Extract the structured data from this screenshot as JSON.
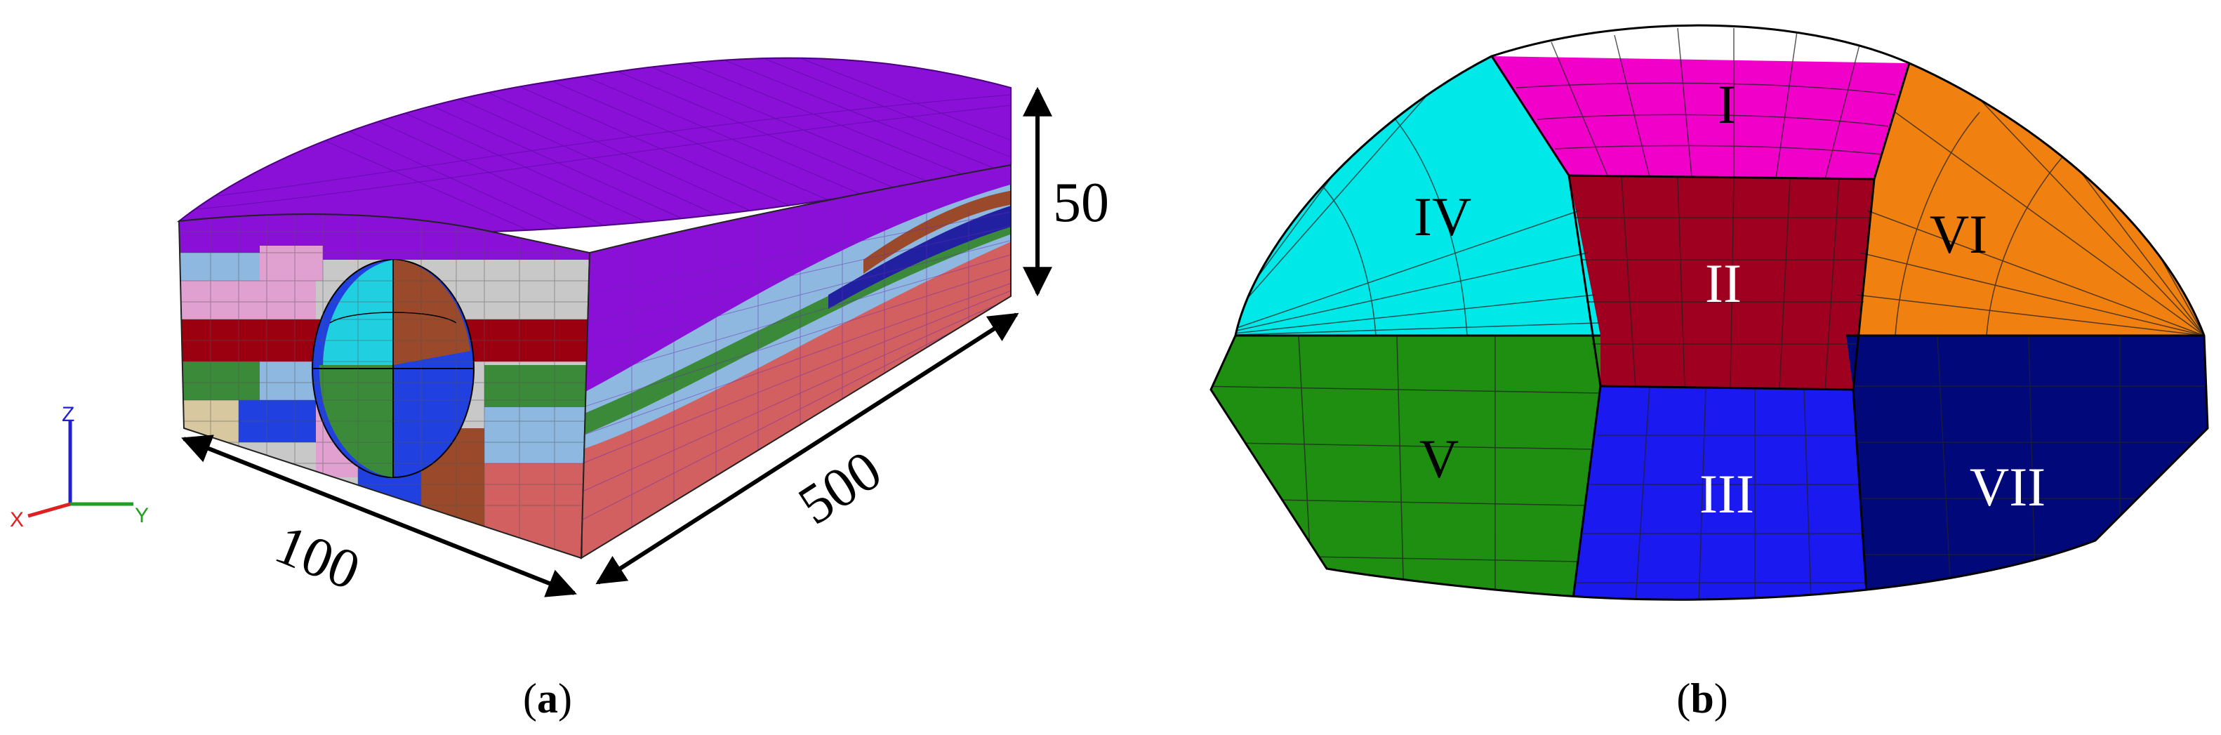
{
  "panel_a": {
    "caption": "(a)",
    "caption_letter": "a",
    "dimensions": {
      "width": "100",
      "length": "500",
      "height": "50"
    },
    "axes": {
      "z": "Z",
      "x": "X",
      "y": "Y"
    },
    "colors": {
      "top_surface": "#8a10d8",
      "red_layer": "#d26060",
      "light_blue": "#8fb8e0",
      "blue": "#2040e0",
      "brown": "#9a4a2a",
      "green": "#3a8a3a",
      "pink": "#e0a0d0",
      "grey": "#c8c8c8",
      "tan": "#d8c8a0",
      "dark_red": "#9a0010",
      "cyan": "#20d0e0"
    }
  },
  "panel_b": {
    "caption": "(b)",
    "caption_letter": "b",
    "regions": [
      {
        "id": "I",
        "label": "I",
        "color": "#f000c8",
        "text_color": "#000000"
      },
      {
        "id": "II",
        "label": "II",
        "color": "#a00020",
        "text_color": "#ffffff"
      },
      {
        "id": "III",
        "label": "III",
        "color": "#1a1af0",
        "text_color": "#ffffff"
      },
      {
        "id": "IV",
        "label": "IV",
        "color": "#00e8e8",
        "text_color": "#000000"
      },
      {
        "id": "V",
        "label": "V",
        "color": "#1f8f12",
        "text_color": "#000000"
      },
      {
        "id": "VI",
        "label": "VI",
        "color": "#f08010",
        "text_color": "#000000"
      },
      {
        "id": "VII",
        "label": "VII",
        "color": "#00087a",
        "text_color": "#ffffff"
      }
    ]
  }
}
